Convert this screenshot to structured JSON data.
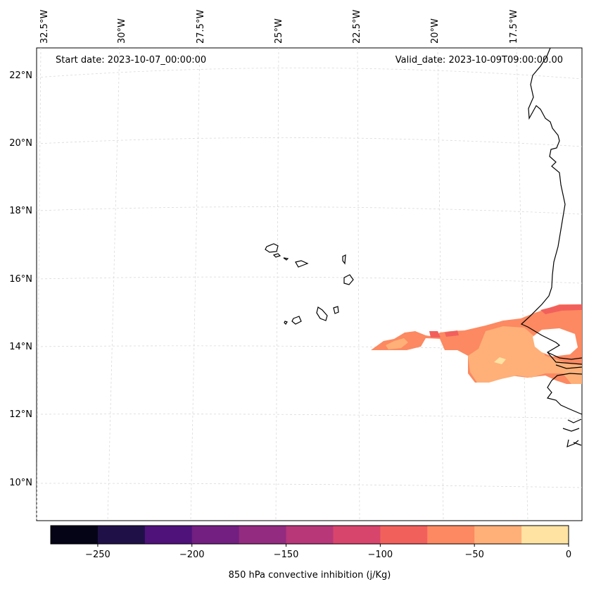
{
  "header": {
    "start_date": "Start date: 2023-10-07_00:00:00",
    "valid_date": "Valid_date: 2023-10-09T09:00:00.00"
  },
  "map": {
    "projection": "lambert",
    "lon_ticks": [
      "32.5°W",
      "30°W",
      "27.5°W",
      "25°W",
      "22.5°W",
      "20°W",
      "17.5°W"
    ],
    "lat_ticks": [
      "22°N",
      "20°N",
      "18°N",
      "16°N",
      "14°N",
      "12°N",
      "10°N"
    ],
    "gridlines": "dashed",
    "coastline_color": "#000000",
    "regions": "Cape Verde islands, West African coast (Mauritania, Senegal, Gambia, Guinea-Bissau)"
  },
  "colorbar": {
    "label": "850 hPa convective inhibition (j/Kg)",
    "ticks": [
      "−250",
      "−200",
      "−150",
      "−100",
      "−50",
      "0"
    ],
    "range": [
      -275,
      0
    ],
    "step": 25,
    "colors": [
      "#050416",
      "#1f1147",
      "#4f127b",
      "#721f81",
      "#932b80",
      "#b73779",
      "#d8456c",
      "#f2605c",
      "#fc8961",
      "#feb078",
      "#fee3a2"
    ]
  },
  "chart_data": {
    "type": "heatmap",
    "variable": "850 hPa convective inhibition",
    "units": "j/Kg",
    "range": [
      -275,
      0
    ],
    "filled_areas": [
      {
        "region": "band 13–14.5°N from ~22.5°W to coast",
        "value_range": [
          -100,
          -75
        ]
      },
      {
        "region": "offshore west of Senegal ~14°N, 18–20°W",
        "value_range": [
          -75,
          -50
        ]
      },
      {
        "region": "core near 13.5°N, 18.5°W",
        "value_range": [
          -50,
          -25
        ]
      },
      {
        "region": "small isolated patches near 14°N",
        "value_range": [
          -125,
          -100
        ]
      }
    ]
  }
}
